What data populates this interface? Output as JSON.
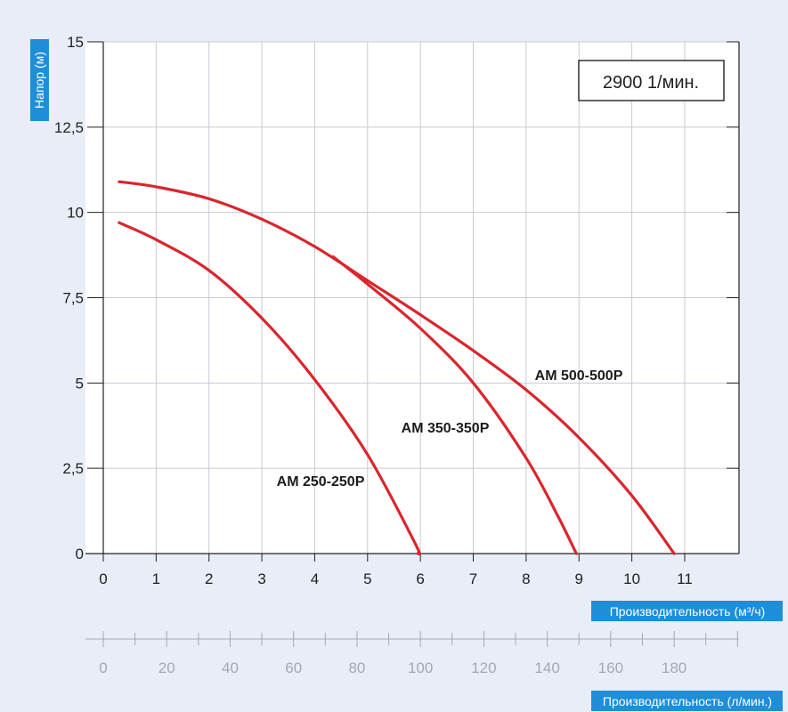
{
  "chart_data": {
    "type": "line",
    "speed_box": "2900 1/мин.",
    "ylabel": "Напор (м)",
    "xlabel": "Производительность (м³/ч)",
    "x2label": "Производительность (л/мин.)",
    "x_ticks": [
      "0",
      "1",
      "2",
      "3",
      "4",
      "5",
      "6",
      "7",
      "8",
      "9",
      "10",
      "11"
    ],
    "y_ticks": [
      "0",
      "2,5",
      "5",
      "7,5",
      "10",
      "12,5",
      "15"
    ],
    "x2_ticks": [
      "0",
      "20",
      "40",
      "60",
      "80",
      "100",
      "120",
      "140",
      "160",
      "180"
    ],
    "xlim": [
      0,
      12
    ],
    "ylim": [
      0,
      15
    ],
    "x2lim": [
      0,
      200
    ],
    "grid": true,
    "series": [
      {
        "name": "AM 250-250P",
        "points": [
          [
            0.3,
            9.7
          ],
          [
            1,
            9.2
          ],
          [
            2,
            8.3
          ],
          [
            3,
            6.9
          ],
          [
            4,
            5.1
          ],
          [
            5,
            2.9
          ],
          [
            5.9,
            0.3
          ],
          [
            5.95,
            0
          ]
        ]
      },
      {
        "name": "AM 350-350P",
        "points": [
          [
            4.35,
            8.7
          ],
          [
            5,
            7.9
          ],
          [
            6,
            6.6
          ],
          [
            7,
            5.0
          ],
          [
            8,
            2.8
          ],
          [
            8.6,
            1.1
          ],
          [
            8.95,
            0
          ]
        ]
      },
      {
        "name": "AM 500-500P",
        "points": [
          [
            0.3,
            10.9
          ],
          [
            1,
            10.75
          ],
          [
            2,
            10.4
          ],
          [
            3,
            9.8
          ],
          [
            4,
            9.0
          ],
          [
            5,
            8.0
          ],
          [
            6,
            7.0
          ],
          [
            7,
            5.95
          ],
          [
            8,
            4.8
          ],
          [
            9,
            3.4
          ],
          [
            10,
            1.7
          ],
          [
            10.8,
            0
          ]
        ]
      }
    ],
    "colors": {
      "curve": "#d9262d",
      "axis_label_bg": "#1f8ed8",
      "grid": "#c7cbd2",
      "background": "#e8edf7",
      "plot_bg": "#ffffff"
    }
  }
}
